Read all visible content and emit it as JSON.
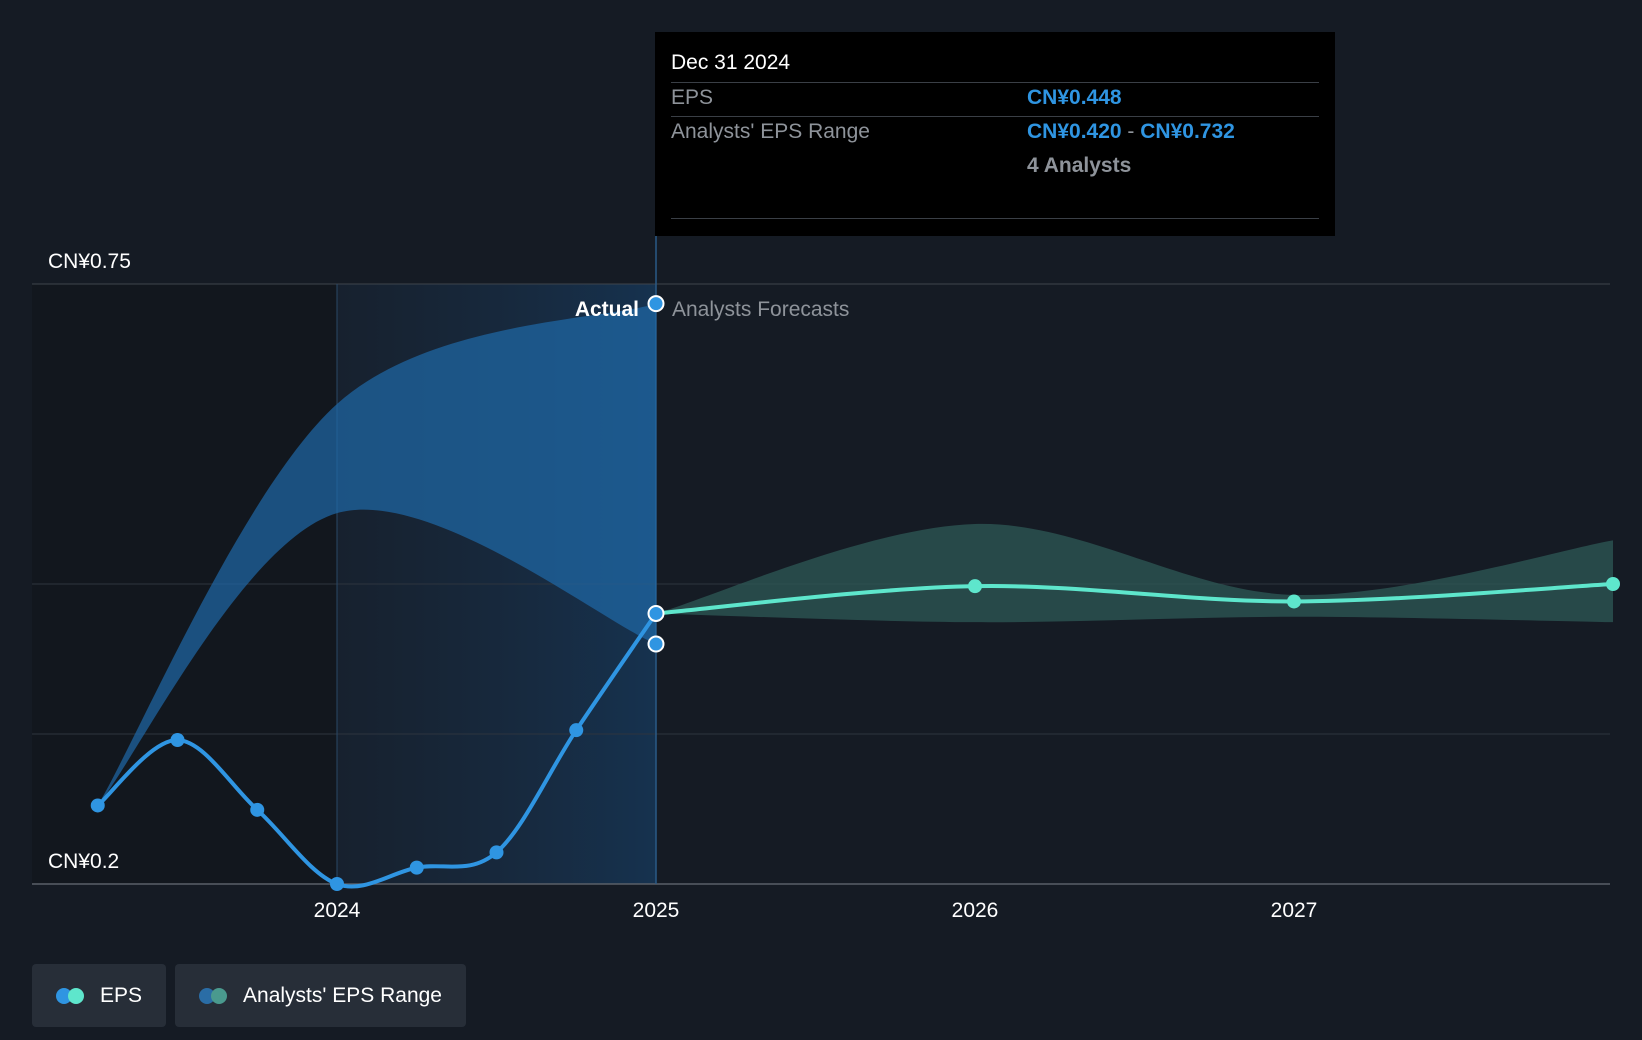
{
  "chart_data": {
    "type": "line",
    "y_axis": {
      "min_label": "CN¥0.2",
      "max_label": "CN¥0.75",
      "ylim": [
        0.2,
        0.75
      ]
    },
    "x_axis": {
      "tick_labels": [
        "2024",
        "2025",
        "2026",
        "2027"
      ]
    },
    "region_labels": {
      "actual": "Actual",
      "forecast": "Analysts Forecasts"
    },
    "series": [
      {
        "name": "EPS",
        "kind": "actual",
        "color": "#2f95e2",
        "points": [
          {
            "x": 2023.25,
            "y": 0.272
          },
          {
            "x": 2023.5,
            "y": 0.332
          },
          {
            "x": 2023.75,
            "y": 0.268
          },
          {
            "x": 2024.0,
            "y": 0.2
          },
          {
            "x": 2024.25,
            "y": 0.215
          },
          {
            "x": 2024.5,
            "y": 0.229
          },
          {
            "x": 2024.75,
            "y": 0.341
          },
          {
            "x": 2025.0,
            "y": 0.448
          }
        ]
      },
      {
        "name": "EPS",
        "kind": "forecast",
        "color": "#5ee6cc",
        "points": [
          {
            "x": 2025.0,
            "y": 0.448
          },
          {
            "x": 2026.0,
            "y": 0.473
          },
          {
            "x": 2027.0,
            "y": 0.459
          },
          {
            "x": 2028.0,
            "y": 0.475
          }
        ]
      },
      {
        "name": "Analysts' EPS Range",
        "kind": "range-actual",
        "color": "#2a7fc4",
        "upper": [
          {
            "x": 2023.25,
            "y": 0.272
          },
          {
            "x": 2024.0,
            "y": 0.64
          },
          {
            "x": 2025.0,
            "y": 0.732
          }
        ],
        "lower": [
          {
            "x": 2023.25,
            "y": 0.272
          },
          {
            "x": 2024.0,
            "y": 0.54
          },
          {
            "x": 2025.0,
            "y": 0.42
          }
        ]
      },
      {
        "name": "Analysts' EPS Range",
        "kind": "range-forecast",
        "color": "#2e5a55",
        "upper": [
          {
            "x": 2025.0,
            "y": 0.448
          },
          {
            "x": 2026.0,
            "y": 0.53
          },
          {
            "x": 2027.0,
            "y": 0.465
          },
          {
            "x": 2028.0,
            "y": 0.515
          }
        ],
        "lower": [
          {
            "x": 2025.0,
            "y": 0.448
          },
          {
            "x": 2026.0,
            "y": 0.44
          },
          {
            "x": 2027.0,
            "y": 0.445
          },
          {
            "x": 2028.0,
            "y": 0.44
          }
        ]
      }
    ],
    "highlight": {
      "x": 2025.0,
      "eps": 0.448,
      "range_low": 0.42,
      "range_high": 0.732
    },
    "grid": true,
    "legend_position": "bottom-left"
  },
  "tooltip": {
    "date": "Dec 31 2024",
    "eps_label": "EPS",
    "eps_value": "CN¥0.448",
    "range_label": "Analysts' EPS Range",
    "range_low": "CN¥0.420",
    "range_separator": "-",
    "range_high": "CN¥0.732",
    "analysts": "4 Analysts"
  },
  "legend": {
    "items": [
      {
        "label": "EPS",
        "colors": [
          "#2f95e2",
          "#5ee6cc"
        ]
      },
      {
        "label": "Analysts' EPS Range",
        "colors": [
          "#2a6da6",
          "#4a9a8e"
        ]
      }
    ]
  }
}
